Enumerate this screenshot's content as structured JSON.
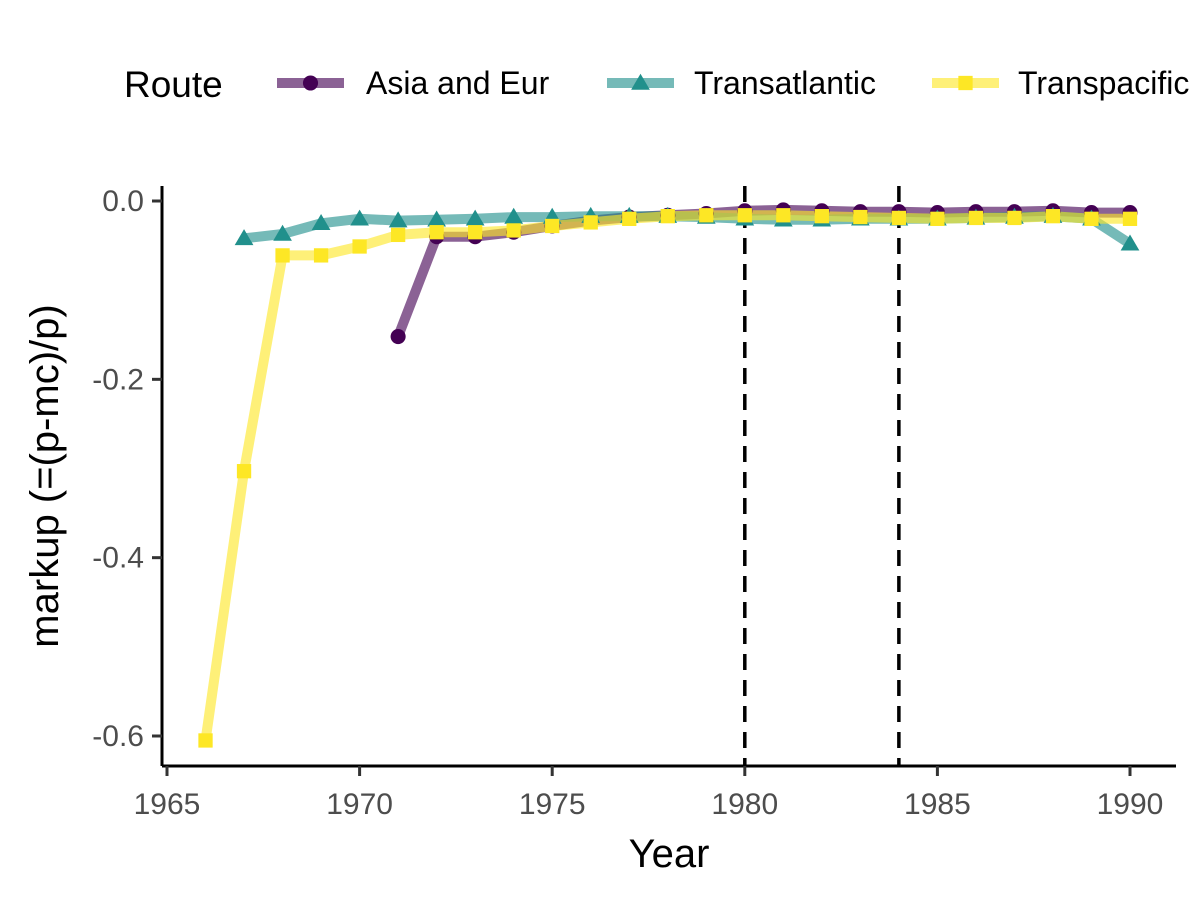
{
  "chart_data": {
    "type": "line",
    "xlabel": "Year",
    "ylabel": "markup (=(p-mc)/p)",
    "xlim": [
      1965,
      1990
    ],
    "ylim": [
      -0.6,
      0.0
    ],
    "xticks": [
      1965,
      1970,
      1975,
      1980,
      1985,
      1990
    ],
    "yticks": [
      -0.6,
      -0.4,
      -0.2,
      0.0
    ],
    "xtick_labels": [
      "1965",
      "1970",
      "1975",
      "1980",
      "1985",
      "1990"
    ],
    "ytick_labels": [
      "-0.6",
      "-0.4",
      "-0.2",
      "0.0"
    ],
    "grid": false,
    "legend": {
      "title": "Route",
      "placement": "top"
    },
    "vlines": [
      1980,
      1984
    ],
    "series": [
      {
        "name": "Asia and Eur",
        "color": "#440154",
        "marker": "circle",
        "x": [
          1971,
          1972,
          1973,
          1974,
          1975,
          1976,
          1977,
          1978,
          1979,
          1980,
          1981,
          1982,
          1983,
          1984,
          1985,
          1986,
          1987,
          1988,
          1989,
          1990
        ],
        "y": [
          -0.152,
          -0.04,
          -0.04,
          -0.035,
          -0.028,
          -0.022,
          -0.018,
          -0.016,
          -0.014,
          -0.011,
          -0.01,
          -0.011,
          -0.012,
          -0.012,
          -0.013,
          -0.012,
          -0.012,
          -0.011,
          -0.013,
          -0.013
        ]
      },
      {
        "name": "Transatlantic",
        "color": "#21908C",
        "marker": "triangle",
        "x": [
          1967,
          1968,
          1969,
          1970,
          1971,
          1972,
          1973,
          1974,
          1975,
          1976,
          1977,
          1978,
          1979,
          1980,
          1981,
          1982,
          1983,
          1984,
          1985,
          1986,
          1987,
          1988,
          1989,
          1990
        ],
        "y": [
          -0.042,
          -0.037,
          -0.025,
          -0.02,
          -0.022,
          -0.021,
          -0.02,
          -0.018,
          -0.018,
          -0.017,
          -0.017,
          -0.017,
          -0.018,
          -0.02,
          -0.021,
          -0.021,
          -0.02,
          -0.02,
          -0.02,
          -0.019,
          -0.018,
          -0.017,
          -0.02,
          -0.048
        ]
      },
      {
        "name": "Transpacific",
        "color": "#FDE725",
        "marker": "square",
        "x": [
          1966,
          1967,
          1968,
          1969,
          1970,
          1971,
          1972,
          1973,
          1974,
          1975,
          1976,
          1977,
          1978,
          1979,
          1980,
          1981,
          1982,
          1983,
          1984,
          1985,
          1986,
          1987,
          1988,
          1989,
          1990
        ],
        "y": [
          -0.605,
          -0.303,
          -0.061,
          -0.061,
          -0.051,
          -0.038,
          -0.035,
          -0.035,
          -0.033,
          -0.028,
          -0.024,
          -0.02,
          -0.017,
          -0.016,
          -0.016,
          -0.016,
          -0.017,
          -0.018,
          -0.019,
          -0.02,
          -0.019,
          -0.019,
          -0.017,
          -0.02,
          -0.02
        ]
      }
    ]
  }
}
